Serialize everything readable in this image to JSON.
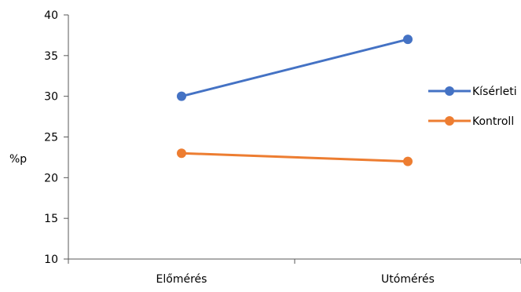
{
  "chart_data": {
    "type": "line",
    "title": "",
    "xlabel": "",
    "ylabel": "%p",
    "categories": [
      "Előmérés",
      "Utómérés"
    ],
    "ylim": [
      10,
      40
    ],
    "yticks": [
      10,
      15,
      20,
      25,
      30,
      35,
      40
    ],
    "grid": false,
    "legend_position": "right",
    "series": [
      {
        "name": "Kísérleti",
        "values": [
          30,
          37
        ],
        "color": "#4472C4"
      },
      {
        "name": "Kontroll",
        "values": [
          23,
          22
        ],
        "color": "#ED7D31"
      }
    ]
  }
}
